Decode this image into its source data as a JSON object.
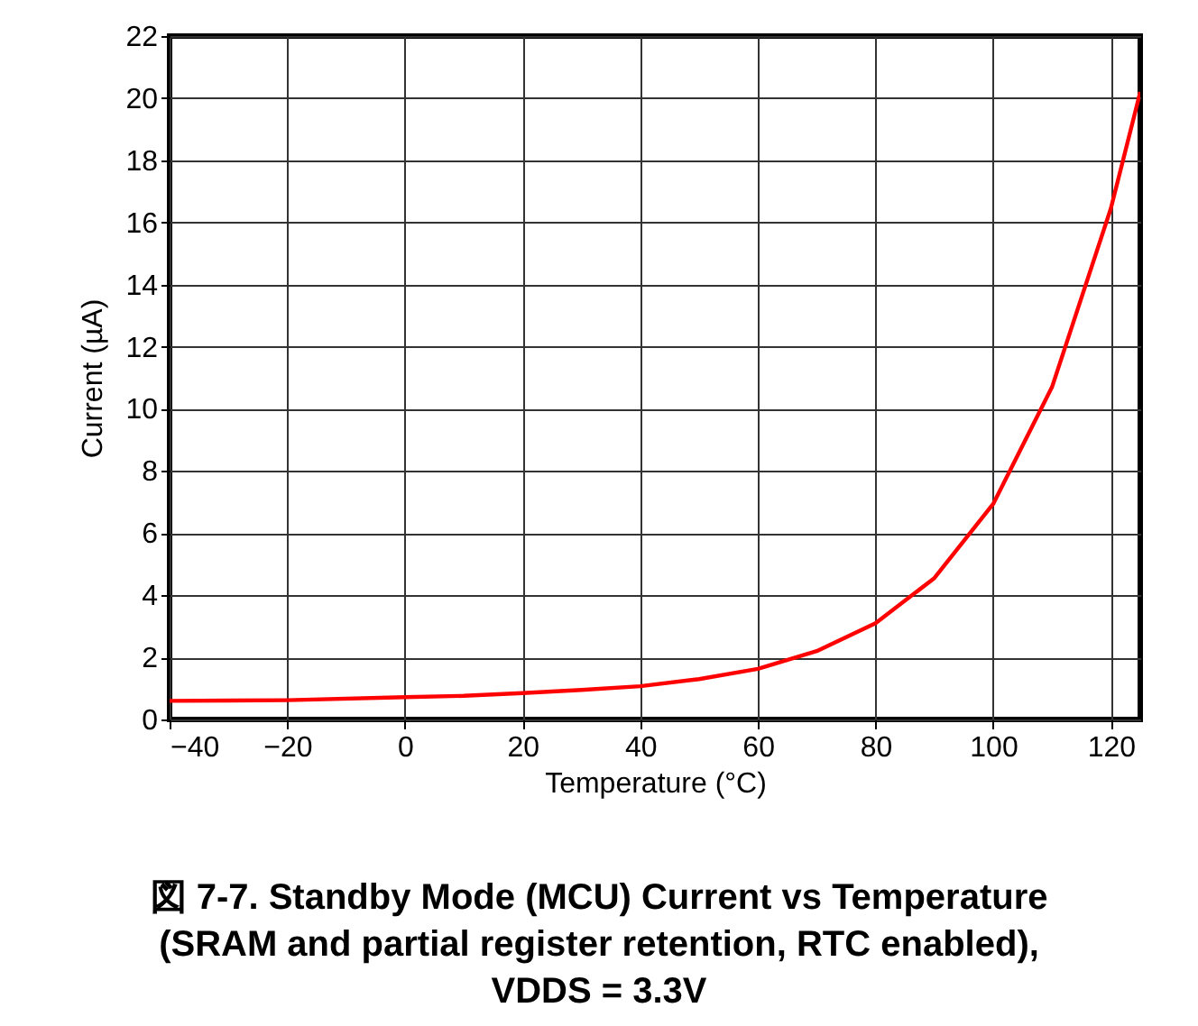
{
  "chart_data": {
    "type": "line",
    "title": "図 7-7. Standby Mode (MCU) Current vs Temperature (SRAM and partial register retention, RTC enabled), VDDS = 3.3V",
    "xlabel": "Temperature (°C)",
    "ylabel": "Current (µA)",
    "x": [
      -40,
      -20,
      0,
      10,
      20,
      30,
      40,
      50,
      60,
      70,
      80,
      90,
      100,
      110,
      120,
      125
    ],
    "series": [
      {
        "color": "#ff0000",
        "values": [
          0.6,
          0.62,
          0.72,
          0.76,
          0.85,
          0.95,
          1.07,
          1.3,
          1.63,
          2.2,
          3.1,
          4.55,
          6.94,
          10.7,
          16.45,
          20.2
        ]
      }
    ],
    "xlim": [
      -40,
      125
    ],
    "xticks": [
      -40,
      -20,
      0,
      20,
      40,
      60,
      80,
      100,
      120
    ],
    "ylim": [
      0,
      22
    ],
    "yticks": [
      0,
      2,
      4,
      6,
      8,
      10,
      12,
      14,
      16,
      18,
      20,
      22
    ],
    "grid": true,
    "line_style": "solid",
    "marker": "none"
  }
}
